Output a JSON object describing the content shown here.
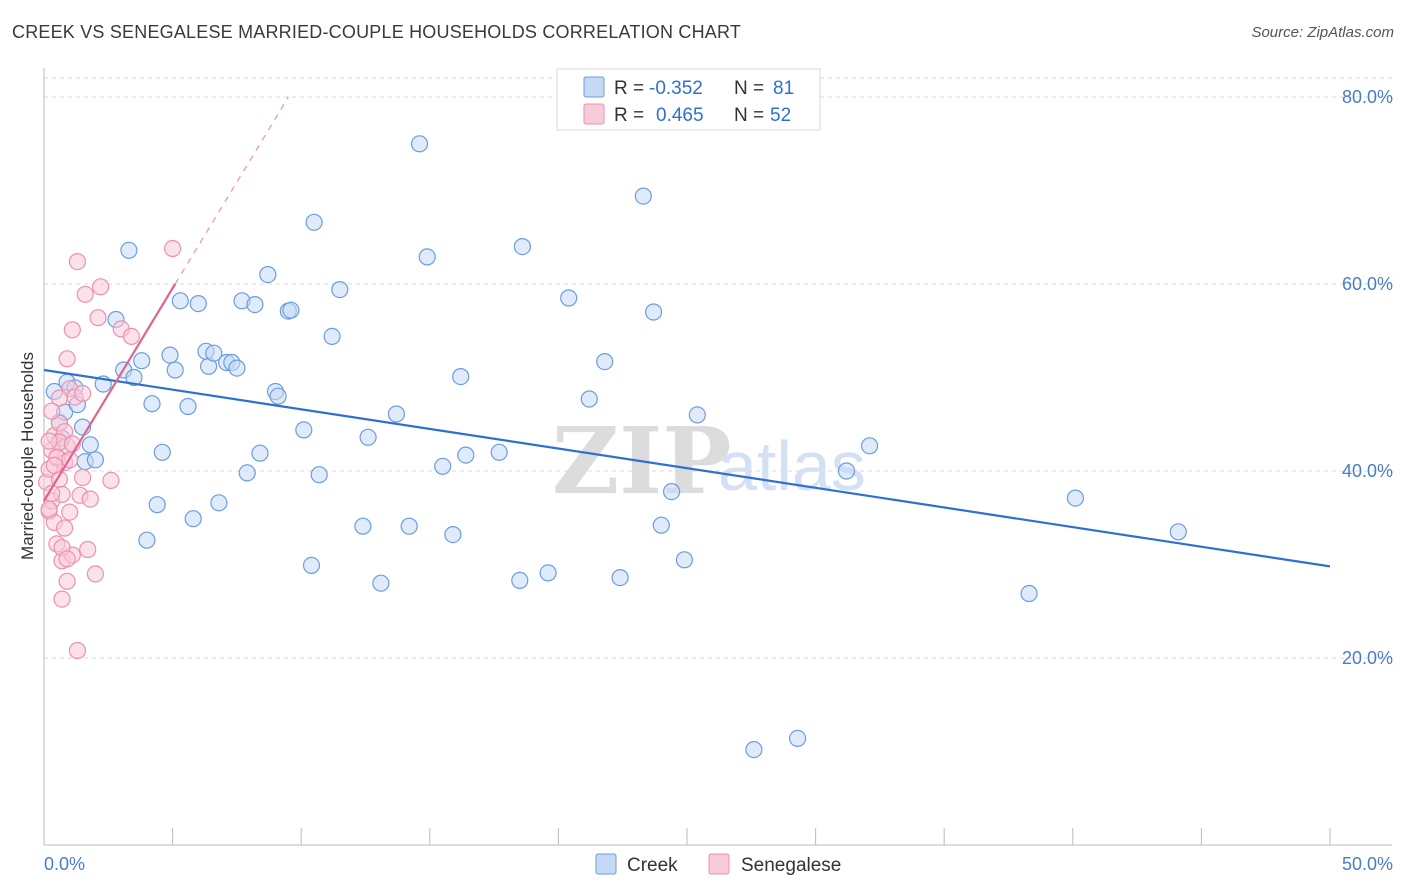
{
  "title": "CREEK VS SENEGALESE MARRIED-COUPLE HOUSEHOLDS CORRELATION CHART",
  "source": "Source: ZipAtlas.com",
  "watermark": {
    "zip": "ZIP",
    "atlas": "atlas"
  },
  "colors": {
    "creek": "#6b9de0",
    "creek_fill": "#c5d9f5",
    "creek_line": "#2f6fd1",
    "senegalese": "#ef8fae",
    "senegalese_fill": "#f8cbd9",
    "senegalese_line": "#e0648f",
    "tick_text": "#4a7cc9",
    "grid": "#d8d8d8"
  },
  "stats": {
    "r_label": "R =",
    "n_label": "N =",
    "creek": {
      "r": "-0.352",
      "n": "81"
    },
    "senegalese": {
      "r": "0.465",
      "n": "52"
    }
  },
  "legend": {
    "creek": "Creek",
    "senegalese": "Senegalese"
  },
  "chart_data": {
    "type": "scatter",
    "title": "CREEK VS SENEGALESE MARRIED-COUPLE HOUSEHOLDS CORRELATION CHART",
    "xlabel": "",
    "ylabel": "Married-couple Households",
    "xlim": [
      0,
      50
    ],
    "ylim": [
      0,
      84
    ],
    "x_tick_labels": {
      "min": "0.0%",
      "max": "50.0%"
    },
    "y_ticks": [
      20,
      40,
      60,
      80
    ],
    "y_tick_labels": [
      "20.0%",
      "40.0%",
      "60.0%",
      "80.0%"
    ],
    "grid": true,
    "series": [
      {
        "name": "Creek",
        "trend": {
          "x0": 0,
          "y0": 50.8,
          "x1": 50,
          "y1": 29.8
        },
        "points": [
          [
            0.4,
            48.5
          ],
          [
            0.6,
            45.2
          ],
          [
            0.7,
            43.5
          ],
          [
            0.8,
            46.3
          ],
          [
            0.9,
            49.5
          ],
          [
            1.2,
            48.9
          ],
          [
            1.3,
            47.1
          ],
          [
            1.5,
            44.7
          ],
          [
            1.6,
            41.0
          ],
          [
            1.8,
            42.8
          ],
          [
            2.0,
            41.2
          ],
          [
            2.3,
            49.3
          ],
          [
            2.8,
            56.2
          ],
          [
            3.1,
            50.8
          ],
          [
            3.3,
            63.6
          ],
          [
            3.5,
            50.0
          ],
          [
            3.8,
            51.8
          ],
          [
            4.0,
            32.6
          ],
          [
            4.2,
            47.2
          ],
          [
            4.4,
            36.4
          ],
          [
            4.6,
            42.0
          ],
          [
            4.9,
            52.4
          ],
          [
            5.1,
            50.8
          ],
          [
            5.3,
            58.2
          ],
          [
            5.6,
            46.9
          ],
          [
            5.8,
            34.9
          ],
          [
            6.0,
            57.9
          ],
          [
            6.3,
            52.8
          ],
          [
            6.4,
            51.2
          ],
          [
            6.6,
            52.6
          ],
          [
            6.8,
            36.6
          ],
          [
            7.1,
            51.6
          ],
          [
            7.3,
            51.6
          ],
          [
            7.5,
            51.0
          ],
          [
            7.7,
            58.2
          ],
          [
            7.9,
            39.8
          ],
          [
            8.2,
            57.8
          ],
          [
            8.4,
            41.9
          ],
          [
            8.7,
            61.0
          ],
          [
            9.0,
            48.5
          ],
          [
            9.1,
            48.0
          ],
          [
            9.5,
            57.1
          ],
          [
            9.6,
            57.2
          ],
          [
            10.1,
            44.4
          ],
          [
            10.4,
            29.9
          ],
          [
            10.5,
            66.6
          ],
          [
            10.7,
            39.6
          ],
          [
            11.2,
            54.4
          ],
          [
            11.5,
            59.4
          ],
          [
            12.4,
            34.1
          ],
          [
            12.6,
            43.6
          ],
          [
            13.1,
            28.0
          ],
          [
            13.7,
            46.1
          ],
          [
            14.2,
            34.1
          ],
          [
            14.6,
            75.0
          ],
          [
            14.9,
            62.9
          ],
          [
            15.5,
            40.5
          ],
          [
            15.9,
            33.2
          ],
          [
            16.2,
            50.1
          ],
          [
            16.4,
            41.7
          ],
          [
            17.7,
            42.0
          ],
          [
            18.5,
            28.3
          ],
          [
            18.6,
            64.0
          ],
          [
            19.6,
            29.1
          ],
          [
            20.4,
            58.5
          ],
          [
            21.2,
            47.7
          ],
          [
            21.8,
            51.7
          ],
          [
            22.4,
            28.6
          ],
          [
            23.3,
            69.4
          ],
          [
            23.7,
            57.0
          ],
          [
            24.0,
            34.2
          ],
          [
            24.4,
            37.8
          ],
          [
            24.9,
            30.5
          ],
          [
            25.4,
            46.0
          ],
          [
            27.6,
            10.2
          ],
          [
            29.3,
            11.4
          ],
          [
            31.2,
            40.0
          ],
          [
            32.1,
            42.7
          ],
          [
            38.3,
            26.9
          ],
          [
            40.1,
            37.1
          ],
          [
            44.1,
            33.5
          ]
        ]
      },
      {
        "name": "Senegalese",
        "trend": {
          "x0": 0,
          "y0": 36.8,
          "x1": 5.1,
          "y1": 60.0,
          "dash_x1": 9.5,
          "dash_y1": 80.0
        },
        "points": [
          [
            0.1,
            38.8
          ],
          [
            0.2,
            35.7
          ],
          [
            0.2,
            40.2
          ],
          [
            0.3,
            36.8
          ],
          [
            0.3,
            42.2
          ],
          [
            0.4,
            34.5
          ],
          [
            0.4,
            43.8
          ],
          [
            0.5,
            32.2
          ],
          [
            0.5,
            41.4
          ],
          [
            0.6,
            39.1
          ],
          [
            0.6,
            45.1
          ],
          [
            0.7,
            30.4
          ],
          [
            0.7,
            37.5
          ],
          [
            0.8,
            44.2
          ],
          [
            0.8,
            40.9
          ],
          [
            0.9,
            28.2
          ],
          [
            0.9,
            42.7
          ],
          [
            1.0,
            48.8
          ],
          [
            1.0,
            35.6
          ],
          [
            1.1,
            55.1
          ],
          [
            1.1,
            31.0
          ],
          [
            1.2,
            47.9
          ],
          [
            1.3,
            62.4
          ],
          [
            1.4,
            37.4
          ],
          [
            1.5,
            39.3
          ],
          [
            1.6,
            58.9
          ],
          [
            1.7,
            31.6
          ],
          [
            1.8,
            37.0
          ],
          [
            2.0,
            29.0
          ],
          [
            2.1,
            56.4
          ],
          [
            2.2,
            59.7
          ],
          [
            2.6,
            39.0
          ],
          [
            3.0,
            55.2
          ],
          [
            3.4,
            54.4
          ],
          [
            5.0,
            63.8
          ],
          [
            1.3,
            20.8
          ],
          [
            0.7,
            26.3
          ],
          [
            0.3,
            37.6
          ],
          [
            0.5,
            41.5
          ],
          [
            0.9,
            52.0
          ],
          [
            0.6,
            43.1
          ],
          [
            0.2,
            35.9
          ],
          [
            0.8,
            33.9
          ],
          [
            0.4,
            40.6
          ],
          [
            0.6,
            47.8
          ],
          [
            1.0,
            41.2
          ],
          [
            1.1,
            42.9
          ],
          [
            0.3,
            46.4
          ],
          [
            0.2,
            43.2
          ],
          [
            0.7,
            31.8
          ],
          [
            1.5,
            48.3
          ],
          [
            0.9,
            30.6
          ]
        ]
      }
    ]
  }
}
